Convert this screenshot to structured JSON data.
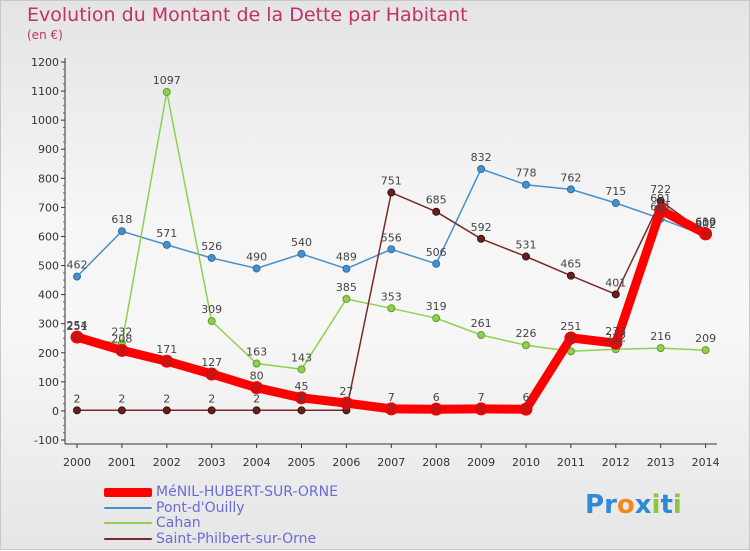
{
  "logo": {
    "text": "Proxiti",
    "letters": [
      {
        "ch": "P",
        "color": "#2f8ad6"
      },
      {
        "ch": "r",
        "color": "#2f8ad6"
      },
      {
        "ch": "o",
        "color": "#f08a1c"
      },
      {
        "ch": "x",
        "color": "#2f8ad6"
      },
      {
        "ch": "i",
        "color": "#8cc63f"
      },
      {
        "ch": "t",
        "color": "#2f8ad6"
      },
      {
        "ch": "i",
        "color": "#8cc63f"
      }
    ]
  },
  "chart_data": {
    "type": "line",
    "title": "Evolution du Montant de la Dette par Habitant",
    "subtitle": "(en €)",
    "xlabel": "",
    "ylabel": "",
    "ylim": [
      -100,
      1200
    ],
    "yticks": [
      -100,
      0,
      100,
      200,
      300,
      400,
      500,
      600,
      700,
      800,
      900,
      1000,
      1100,
      1200
    ],
    "categories": [
      "2000",
      "2001",
      "2002",
      "2003",
      "2004",
      "2005",
      "2006",
      "2007",
      "2008",
      "2009",
      "2010",
      "2011",
      "2012",
      "2013",
      "2014"
    ],
    "grid": false,
    "legend_position": "bottom-left",
    "series": [
      {
        "name": "Pont-d'Ouilly",
        "color": "#4a90c8",
        "values": [
          462,
          618,
          571,
          526,
          490,
          540,
          489,
          556,
          506,
          832,
          778,
          762,
          715,
          661,
          602
        ],
        "labels": [
          "462",
          "618",
          "571",
          "526",
          "490",
          "540",
          "489",
          "556",
          "506",
          "832",
          "778",
          "762",
          "715",
          "661",
          "602"
        ]
      },
      {
        "name": "Cahan",
        "color": "#8fd14f",
        "values": [
          251,
          232,
          1097,
          309,
          163,
          143,
          385,
          353,
          319,
          261,
          226,
          205,
          212,
          216,
          209
        ],
        "labels": [
          "251",
          "232",
          "1097",
          "309",
          "163",
          "143",
          "385",
          "353",
          "319",
          "261",
          "226",
          "",
          "212",
          "216",
          "209"
        ]
      },
      {
        "name": "Saint-Philbert-sur-Orne",
        "color": "#7a2a2a",
        "values": [
          2,
          2,
          2,
          2,
          2,
          2,
          2,
          751,
          685,
          592,
          531,
          465,
          401,
          722,
          610
        ],
        "labels": [
          "2",
          "2",
          "2",
          "2",
          "2",
          "2",
          "",
          "751",
          "685",
          "592",
          "531",
          "465",
          "401",
          "722",
          "610"
        ]
      },
      {
        "name": "MéNIL-HUBERT-SUR-ORNE",
        "color": "#ff0000",
        "values": [
          254,
          208,
          171,
          127,
          80,
          45,
          27,
          7,
          6,
          7,
          6,
          251,
          233,
          691,
          609
        ],
        "labels": [
          "254",
          "208",
          "171",
          "127",
          "80",
          "45",
          "27",
          "7",
          "6",
          "7",
          "6",
          "251",
          "233",
          "691",
          "609"
        ]
      }
    ]
  }
}
